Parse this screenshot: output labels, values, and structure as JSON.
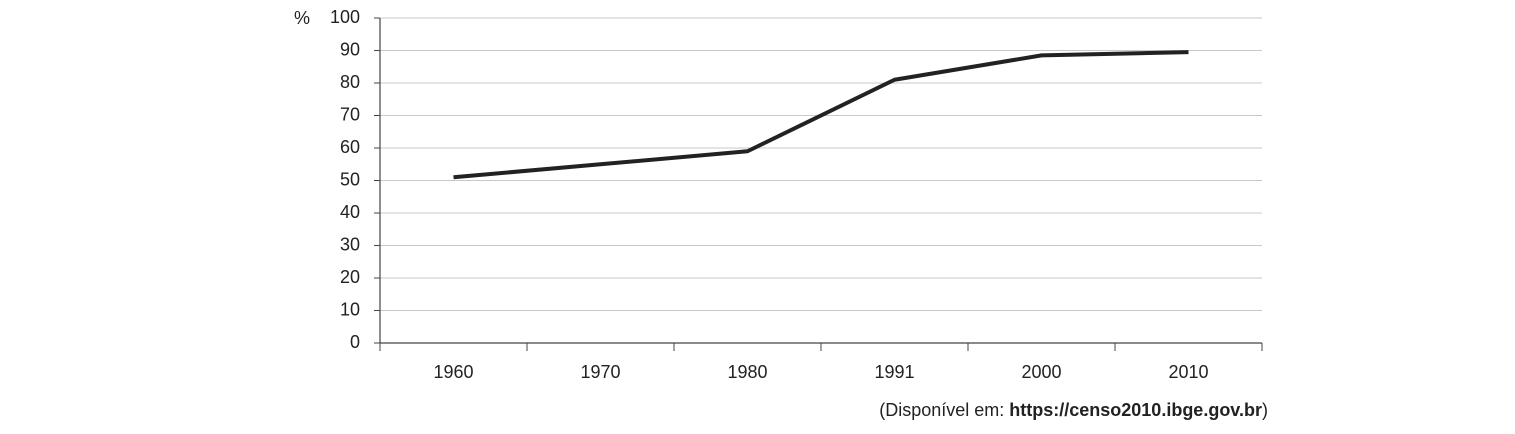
{
  "chart_data": {
    "type": "line",
    "y_label": "%",
    "categories": [
      "1960",
      "1970",
      "1980",
      "1991",
      "2000",
      "2010"
    ],
    "values": [
      51,
      55,
      59,
      81,
      88.5,
      89.5
    ],
    "color": "#222222",
    "ylim": [
      0,
      100
    ],
    "yticks": [
      0,
      10,
      20,
      30,
      40,
      50,
      60,
      70,
      80,
      90,
      100
    ],
    "grid": true,
    "source": {
      "prefix": "(Disponível em: ",
      "url": "https://censo2010.ibge.gov.br",
      "suffix": ")"
    }
  }
}
